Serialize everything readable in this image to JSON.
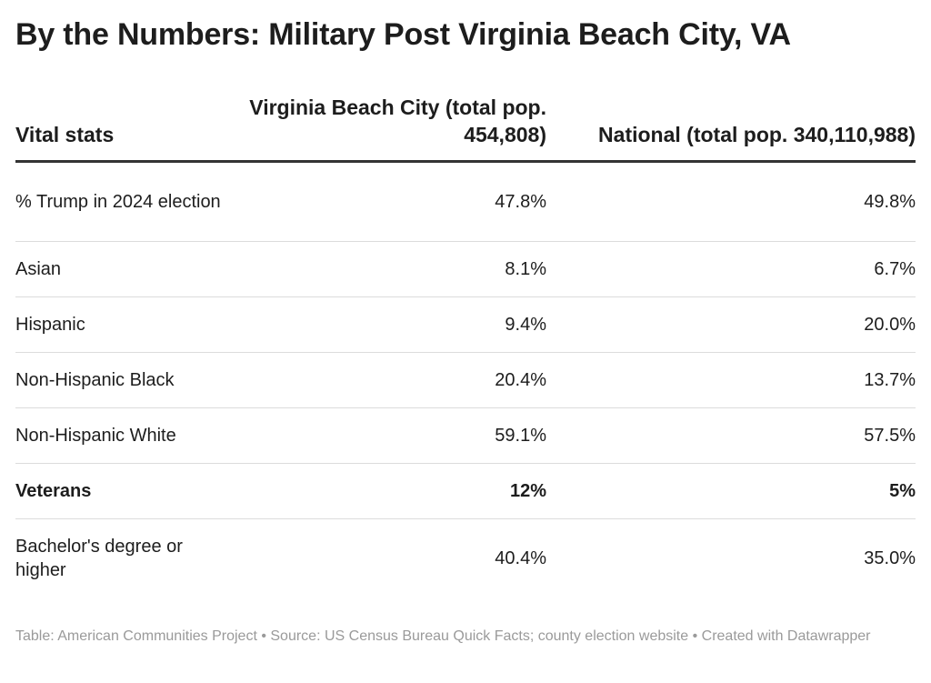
{
  "title": "By the Numbers: Military Post Virginia Beach City, VA",
  "chart_data": {
    "type": "table",
    "columns": [
      "Vital stats",
      "Virginia Beach City (total pop. 454,808)",
      "National (total pop. 340,110,988)"
    ],
    "rows": [
      {
        "label": "% Trump in 2024 election",
        "values": [
          "47.8%",
          "49.8%"
        ],
        "bold": false
      },
      {
        "label": "Asian",
        "values": [
          "8.1%",
          "6.7%"
        ],
        "bold": false
      },
      {
        "label": "Hispanic",
        "values": [
          "9.4%",
          "20.0%"
        ],
        "bold": false
      },
      {
        "label": "Non-Hispanic Black",
        "values": [
          "20.4%",
          "13.7%"
        ],
        "bold": false
      },
      {
        "label": "Non-Hispanic White",
        "values": [
          "59.1%",
          "57.5%"
        ],
        "bold": false
      },
      {
        "label": "Veterans",
        "values": [
          "12%",
          "5%"
        ],
        "bold": true
      },
      {
        "label": "Bachelor's degree or higher",
        "values": [
          "40.4%",
          "35.0%"
        ],
        "bold": false
      }
    ]
  },
  "footer": "Table: American Communities Project • Source: US Census Bureau Quick Facts; county election website • Created with Datawrapper"
}
